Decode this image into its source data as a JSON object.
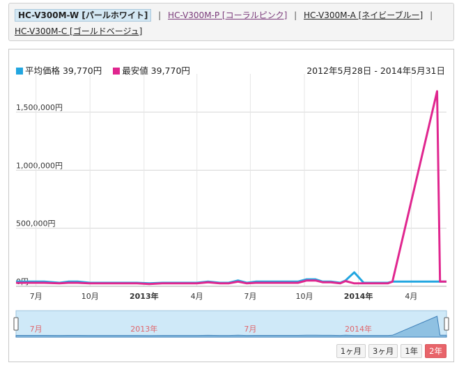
{
  "variants": {
    "current": "HC-V300M-W [パールホワイト]",
    "items": [
      {
        "label": "HC-V300M-P [コーラルピンク]"
      },
      {
        "label": "HC-V300M-A [ネイビーブルー]"
      },
      {
        "label": "HC-V300M-C [ゴールドベージュ]"
      }
    ],
    "separator": "|"
  },
  "legend": {
    "avg_label": "平均価格 39,770円",
    "min_label": "最安値 39,770円",
    "avg_color": "#22a6e0",
    "min_color": "#e0268f"
  },
  "date_range": "2012年5月28日 - 2014年5月31日",
  "range_buttons": [
    "1ヶ月",
    "3ヶ月",
    "1年",
    "2年"
  ],
  "range_selected": "2年",
  "navigator_labels": [
    "7月",
    "2013年",
    "7月",
    "2014年"
  ],
  "chart_data": {
    "type": "line",
    "x_tick_labels": [
      "7月",
      "10月",
      "2013年",
      "4月",
      "7月",
      "10月",
      "2014年",
      "4月"
    ],
    "y_tick_labels": [
      "0円",
      "500,000円",
      "1,000,000円",
      "1,500,000円"
    ],
    "ylim": [
      0,
      1800000
    ],
    "grid": true,
    "series": [
      {
        "name": "平均価格",
        "color": "#22a6e0",
        "x": [
          "2012-05-28",
          "2012-07-15",
          "2012-08-10",
          "2012-08-25",
          "2012-09-10",
          "2012-10-01",
          "2012-11-15",
          "2012-12-20",
          "2013-01-10",
          "2013-02-01",
          "2013-03-01",
          "2013-04-01",
          "2013-04-20",
          "2013-05-10",
          "2013-05-25",
          "2013-06-10",
          "2013-06-25",
          "2013-07-10",
          "2013-08-01",
          "2013-08-20",
          "2013-09-05",
          "2013-09-20",
          "2013-10-05",
          "2013-10-20",
          "2013-11-01",
          "2013-11-15",
          "2013-12-01",
          "2013-12-10",
          "2013-12-25",
          "2014-01-10",
          "2014-02-01",
          "2014-02-20",
          "2014-02-28",
          "2014-05-15",
          "2014-05-20",
          "2014-05-31"
        ],
        "y": [
          40000,
          40000,
          30000,
          40000,
          40000,
          30000,
          30000,
          30000,
          25000,
          30000,
          30000,
          30000,
          40000,
          30000,
          30000,
          50000,
          30000,
          40000,
          40000,
          40000,
          40000,
          40000,
          60000,
          60000,
          40000,
          40000,
          30000,
          50000,
          120000,
          30000,
          30000,
          30000,
          40000,
          40000,
          40000,
          40000
        ]
      },
      {
        "name": "最安値",
        "color": "#e0268f",
        "x": [
          "2012-05-28",
          "2012-07-15",
          "2012-08-10",
          "2012-08-25",
          "2012-09-10",
          "2012-10-01",
          "2012-11-15",
          "2012-12-20",
          "2013-01-10",
          "2013-02-01",
          "2013-03-01",
          "2013-04-01",
          "2013-04-20",
          "2013-05-10",
          "2013-05-25",
          "2013-06-10",
          "2013-06-25",
          "2013-07-10",
          "2013-08-01",
          "2013-08-20",
          "2013-09-05",
          "2013-09-20",
          "2013-10-05",
          "2013-10-20",
          "2013-11-01",
          "2013-11-15",
          "2013-12-01",
          "2013-12-10",
          "2013-12-25",
          "2014-01-10",
          "2014-02-01",
          "2014-02-20",
          "2014-02-28",
          "2014-05-15",
          "2014-05-20",
          "2014-05-31"
        ],
        "y": [
          30000,
          30000,
          25000,
          30000,
          30000,
          25000,
          25000,
          25000,
          20000,
          25000,
          25000,
          25000,
          35000,
          25000,
          25000,
          40000,
          25000,
          30000,
          30000,
          30000,
          30000,
          30000,
          50000,
          50000,
          35000,
          35000,
          25000,
          45000,
          25000,
          25000,
          25000,
          25000,
          40000,
          1680000,
          40000,
          40000
        ]
      }
    ]
  }
}
